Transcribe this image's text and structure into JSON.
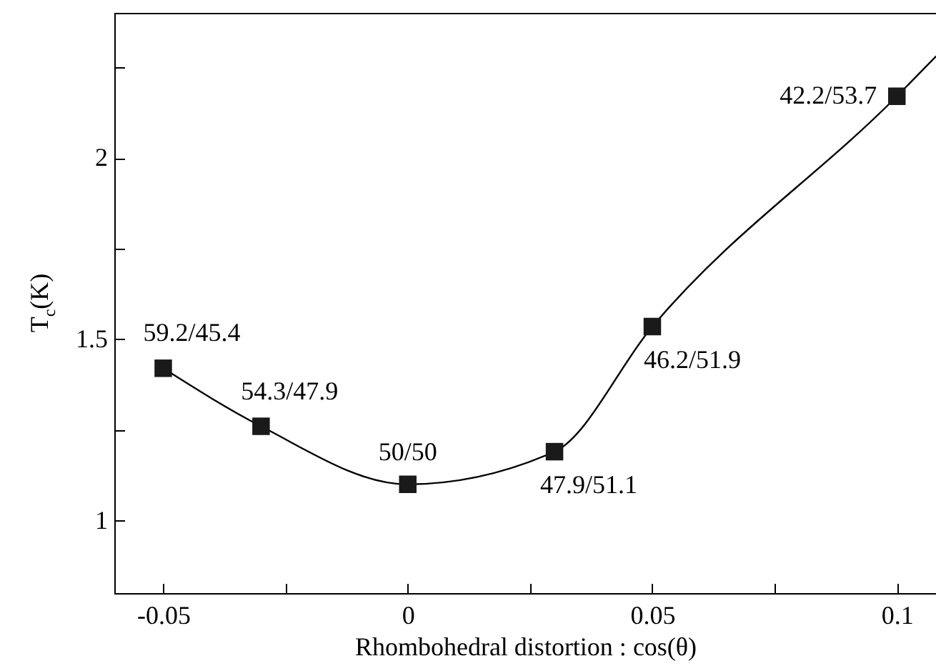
{
  "chart_data": {
    "type": "line",
    "xlabel": "Rhombohedral distortion : cos(θ)",
    "ylabel": "T$_{c}$(K)",
    "xlim": [
      -0.06,
      0.108
    ],
    "xticks": [
      -0.05,
      {
        "value": -0.025,
        "label": null
      },
      0,
      {
        "value": 0.025,
        "label": null
      },
      0.05,
      {
        "value": 0.075,
        "label": null
      },
      0.1
    ],
    "ylim": [
      0.8,
      2.4
    ],
    "yticks": [
      1,
      {
        "value": 1.25,
        "label": null
      },
      1.5,
      {
        "value": 1.75,
        "label": null
      },
      2,
      {
        "value": 2.25,
        "label": null
      }
    ],
    "grid": false,
    "line_style": "solid",
    "series": [
      {
        "type": "line",
        "color": "#000000",
        "marker": "none",
        "x": [
          -0.05,
          -0.03,
          0,
          0.03,
          0.05,
          0.1,
          0.108
        ],
        "values": [
          1.42,
          1.26,
          1.1,
          1.19,
          1.535,
          2.17,
          2.28
        ]
      },
      {
        "type": "scatter",
        "color": "#1a1a1a",
        "marker": "square",
        "x": [
          -0.05,
          -0.03,
          0,
          0.03,
          0.05,
          0.1
        ],
        "values": [
          1.42,
          1.26,
          1.1,
          1.19,
          1.535,
          2.17
        ]
      }
    ],
    "annotations": [
      {
        "text": "59.2/45.4",
        "x": -0.05,
        "y": 1.42
      },
      {
        "text": "54.3/47.9",
        "x": -0.03,
        "y": 1.26
      },
      {
        "text": "50/50",
        "x": 0,
        "y": 1.1
      },
      {
        "text": "47.9/51.1",
        "x": 0.03,
        "y": 1.19
      },
      {
        "text": "46.2/51.9",
        "x": 0.05,
        "y": 1.535
      },
      {
        "text": "42.2/53.7",
        "x": 0.1,
        "y": 2.17
      }
    ]
  }
}
